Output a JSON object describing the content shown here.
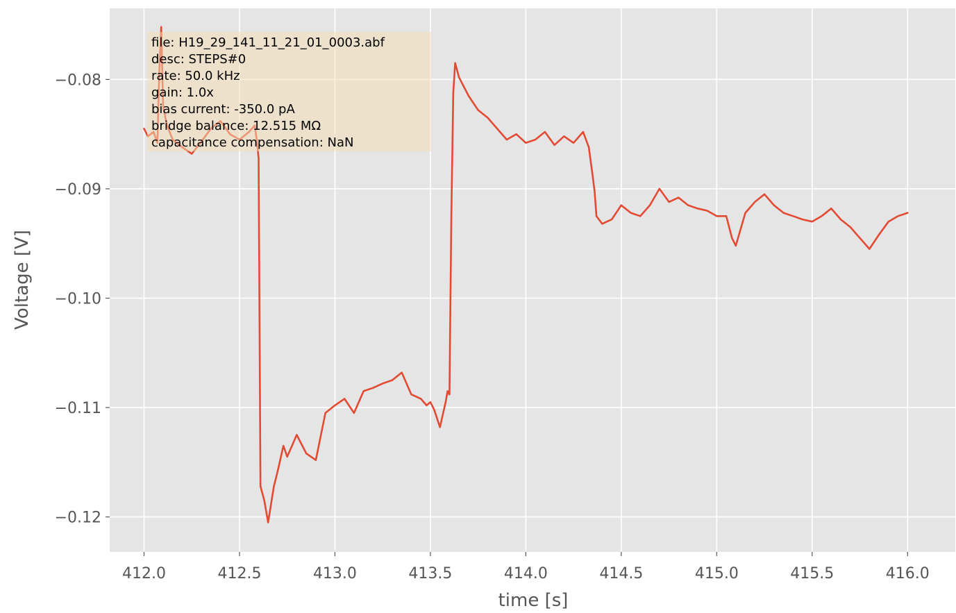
{
  "chart_data": {
    "type": "line",
    "title": "",
    "xlabel": "time [s]",
    "ylabel": "Voltage [V]",
    "xlim": [
      411.82,
      416.25
    ],
    "ylim": [
      -0.1232,
      -0.0735
    ],
    "grid": true,
    "style": "ggplot",
    "line_color": "#e24a33",
    "background_color": "#e5e5e5",
    "info_box_color": "#f5deb3",
    "x_ticks": [
      412.0,
      412.5,
      413.0,
      413.5,
      414.0,
      414.5,
      415.0,
      415.5,
      416.0
    ],
    "x_tick_labels": [
      "412.0",
      "412.5",
      "413.0",
      "413.5",
      "414.0",
      "414.5",
      "415.0",
      "415.5",
      "416.0"
    ],
    "y_ticks": [
      -0.08,
      -0.09,
      -0.1,
      -0.11,
      -0.12
    ],
    "y_tick_labels": [
      "−0.08",
      "−0.09",
      "−0.10",
      "−0.11",
      "−0.12"
    ],
    "series": [
      {
        "x": [
          412.0,
          412.02,
          412.05,
          412.07,
          412.08,
          412.09,
          412.1,
          412.12,
          412.15,
          412.2,
          412.25,
          412.3,
          412.35,
          412.4,
          412.45,
          412.5,
          412.55,
          412.58,
          412.59,
          412.6,
          412.61,
          412.63,
          412.65,
          412.68,
          412.7,
          412.73,
          412.75,
          412.8,
          412.85,
          412.9,
          412.95,
          413.0,
          413.05,
          413.1,
          413.15,
          413.2,
          413.25,
          413.3,
          413.35,
          413.4,
          413.45,
          413.48,
          413.5,
          413.52,
          413.55,
          413.58,
          413.59,
          413.6,
          413.61,
          413.62,
          413.63,
          413.65,
          413.7,
          413.75,
          413.8,
          413.85,
          413.9,
          413.95,
          414.0,
          414.05,
          414.1,
          414.15,
          414.2,
          414.25,
          414.3,
          414.33,
          414.35,
          414.36,
          414.37,
          414.4,
          414.45,
          414.5,
          414.55,
          414.6,
          414.65,
          414.7,
          414.75,
          414.8,
          414.85,
          414.9,
          414.95,
          415.0,
          415.05,
          415.08,
          415.1,
          415.15,
          415.2,
          415.25,
          415.3,
          415.35,
          415.4,
          415.45,
          415.5,
          415.55,
          415.6,
          415.65,
          415.7,
          415.75,
          415.8,
          415.85,
          415.9,
          415.95,
          416.0
        ],
        "y": [
          -0.0845,
          -0.0852,
          -0.0848,
          -0.0858,
          -0.0792,
          -0.0752,
          -0.0825,
          -0.0842,
          -0.0855,
          -0.0862,
          -0.0868,
          -0.0857,
          -0.0845,
          -0.0838,
          -0.085,
          -0.0855,
          -0.0848,
          -0.0842,
          -0.0855,
          -0.0872,
          -0.1172,
          -0.1185,
          -0.1205,
          -0.1172,
          -0.1158,
          -0.1135,
          -0.1145,
          -0.1125,
          -0.1142,
          -0.1148,
          -0.1105,
          -0.1098,
          -0.1092,
          -0.1105,
          -0.1085,
          -0.1082,
          -0.1078,
          -0.1075,
          -0.1068,
          -0.1088,
          -0.1092,
          -0.1098,
          -0.1095,
          -0.1102,
          -0.1118,
          -0.1095,
          -0.1085,
          -0.1088,
          -0.0925,
          -0.0812,
          -0.0785,
          -0.0798,
          -0.0815,
          -0.0828,
          -0.0835,
          -0.0845,
          -0.0855,
          -0.085,
          -0.0858,
          -0.0855,
          -0.0848,
          -0.086,
          -0.0852,
          -0.0858,
          -0.0848,
          -0.0862,
          -0.0888,
          -0.0902,
          -0.0925,
          -0.0932,
          -0.0928,
          -0.0915,
          -0.0922,
          -0.0925,
          -0.0915,
          -0.09,
          -0.0912,
          -0.0908,
          -0.0915,
          -0.0918,
          -0.092,
          -0.0925,
          -0.0925,
          -0.0945,
          -0.0952,
          -0.0922,
          -0.0912,
          -0.0905,
          -0.0915,
          -0.0922,
          -0.0925,
          -0.0928,
          -0.093,
          -0.0925,
          -0.0918,
          -0.0928,
          -0.0935,
          -0.0945,
          -0.0955,
          -0.0942,
          -0.093,
          -0.0925,
          -0.0922
        ]
      }
    ],
    "info_box": [
      "file: H19_29_141_11_21_01_0003.abf",
      "desc: STEPS#0",
      "rate: 50.0 kHz",
      "gain: 1.0x",
      "bias current: -350.0 pA",
      "bridge balance: 12.515 MΩ",
      "capacitance compensation: NaN"
    ]
  }
}
